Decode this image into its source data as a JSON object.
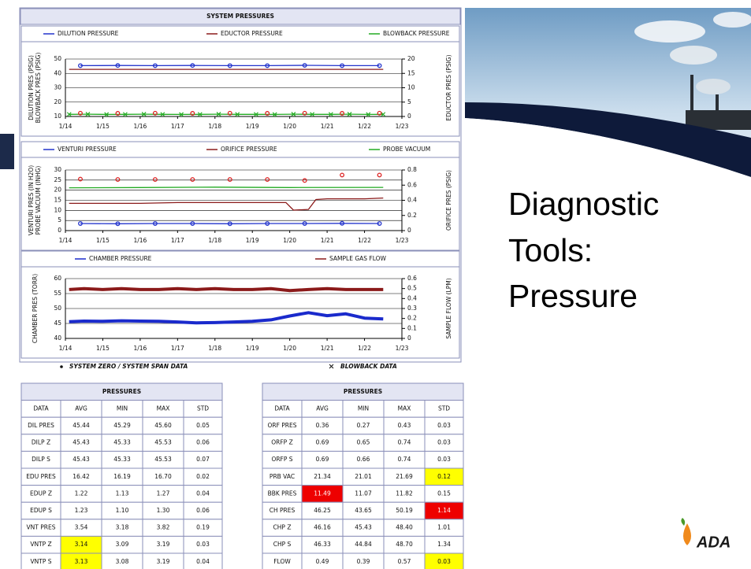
{
  "slide_title": [
    "Diagnostic",
    "Tools:",
    "Pressure"
  ],
  "panel_title": "SYSTEM PRESSURES",
  "chart_data": [
    {
      "type": "line",
      "ylabel": [
        "DILUTION PRES (PSIG)",
        "BLOWBACK PRES (PSIG)"
      ],
      "y2label": "EDUCTOR PRES (PSIG)",
      "xlim": [
        14,
        23
      ],
      "xticks": [
        {
          "value": 14,
          "label": "1/14"
        },
        {
          "value": 15,
          "label": "1/15"
        },
        {
          "value": 16,
          "label": "1/16"
        },
        {
          "value": 17,
          "label": "1/17"
        },
        {
          "value": 18,
          "label": "1/18"
        },
        {
          "value": 19,
          "label": "1/19"
        },
        {
          "value": 20,
          "label": "1/20"
        },
        {
          "value": 21,
          "label": "1/21"
        },
        {
          "value": 22,
          "label": "1/22"
        },
        {
          "value": 23,
          "label": "1/23"
        }
      ],
      "ylim": [
        10,
        50
      ],
      "yticks": [
        10,
        20,
        30,
        40,
        50
      ],
      "y2lim": [
        0,
        20
      ],
      "y2ticks": [
        0,
        5,
        10,
        15,
        20
      ],
      "grid": true,
      "series": [
        {
          "name": "DILUTION PRESSURE",
          "color": "#2233cc",
          "marker": "circle",
          "x": [
            14.4,
            15.4,
            16.4,
            17.4,
            18.4,
            19.4,
            20.4,
            21.4,
            22.4
          ],
          "values": [
            45.4,
            45.5,
            45.4,
            45.5,
            45.4,
            45.4,
            45.6,
            45.4,
            45.4
          ]
        },
        {
          "name": "EDUCTOR PRESSURE",
          "color": "#8b1a1a",
          "axis": "y2",
          "x": [
            14.1,
            16,
            18,
            20,
            22.5
          ],
          "values": [
            16.4,
            16.4,
            16.4,
            16.4,
            16.4
          ]
        },
        {
          "name": "BLOWBACK PRESSURE",
          "color": "#22aa22",
          "marker": "x",
          "x": [
            14.1,
            14.6,
            15.1,
            15.6,
            16.1,
            16.6,
            17.1,
            17.6,
            18.1,
            18.6,
            19.1,
            19.6,
            20.1,
            20.6,
            21.1,
            21.6,
            22.1,
            22.5
          ],
          "values": [
            11.5,
            11.6,
            11.4,
            11.5,
            11.6,
            11.5,
            11.4,
            11.5,
            11.6,
            11.5,
            11.5,
            11.4,
            11.6,
            11.5,
            11.5,
            11.6,
            11.4,
            11.5
          ]
        },
        {
          "color": "#dd2222",
          "marker": "circle",
          "line": false,
          "x": [
            14.4,
            15.4,
            16.4,
            17.4,
            18.4,
            19.4,
            20.4,
            21.4,
            22.4
          ],
          "values": [
            12.3,
            12.2,
            12.3,
            12.2,
            12.3,
            12.2,
            12.3,
            12.2,
            12.3
          ]
        }
      ]
    },
    {
      "type": "line",
      "ylabel": [
        "VENTURI PRES (IN H2O)",
        "PROBE VACUUM (INHG)"
      ],
      "y2label": "ORIFICE PRES (PSIG)",
      "xlim": [
        14,
        23
      ],
      "xticks": [
        {
          "value": 14,
          "label": "1/14"
        },
        {
          "value": 15,
          "label": "1/15"
        },
        {
          "value": 16,
          "label": "1/16"
        },
        {
          "value": 17,
          "label": "1/17"
        },
        {
          "value": 18,
          "label": "1/18"
        },
        {
          "value": 19,
          "label": "1/19"
        },
        {
          "value": 20,
          "label": "1/20"
        },
        {
          "value": 21,
          "label": "1/21"
        },
        {
          "value": 22,
          "label": "1/22"
        },
        {
          "value": 23,
          "label": "1/23"
        }
      ],
      "ylim": [
        0,
        30
      ],
      "yticks": [
        0,
        5,
        10,
        15,
        20,
        25,
        30
      ],
      "y2lim": [
        0,
        0.8
      ],
      "y2ticks": [
        0,
        0.2,
        0.4,
        0.6,
        0.8
      ],
      "grid": true,
      "series": [
        {
          "name": "VENTURI PRESSURE",
          "color": "#2233cc",
          "marker": "circle",
          "x": [
            14.4,
            15.4,
            16.4,
            17.4,
            18.4,
            19.4,
            20.4,
            21.4,
            22.4
          ],
          "values": [
            3.5,
            3.4,
            3.5,
            3.5,
            3.4,
            3.5,
            3.5,
            3.6,
            3.5
          ]
        },
        {
          "name": "ORIFICE PRESSURE",
          "color": "#8b1a1a",
          "axis": "y2",
          "x": [
            14.1,
            15,
            16,
            17,
            18,
            19,
            19.9,
            20.1,
            20.5,
            20.7,
            21,
            22,
            22.5
          ],
          "values": [
            0.36,
            0.36,
            0.36,
            0.37,
            0.37,
            0.37,
            0.37,
            0.27,
            0.28,
            0.41,
            0.42,
            0.42,
            0.43
          ]
        },
        {
          "name": "PROBE VACUUM",
          "color": "#22aa22",
          "x": [
            14.1,
            16,
            18,
            20,
            22.5
          ],
          "values": [
            21.2,
            21.3,
            21.5,
            21.3,
            21.4
          ]
        },
        {
          "color": "#dd2222",
          "marker": "circle",
          "line": false,
          "x": [
            14.4,
            15.4,
            16.4,
            17.4,
            18.4,
            19.4,
            20.4,
            21.4,
            22.4
          ],
          "values": [
            25.5,
            25.3,
            25.3,
            25.3,
            25.3,
            25.3,
            24.8,
            27.5,
            27.5
          ]
        }
      ]
    },
    {
      "type": "line",
      "ylabel": [
        "CHAMBER PRES (TORR)"
      ],
      "y2label": "SAMPLE FLOW (LPM)",
      "xlim": [
        14,
        23
      ],
      "xticks": [
        {
          "value": 14,
          "label": "1/14"
        },
        {
          "value": 15,
          "label": "1/15"
        },
        {
          "value": 16,
          "label": "1/16"
        },
        {
          "value": 17,
          "label": "1/17"
        },
        {
          "value": 18,
          "label": "1/18"
        },
        {
          "value": 19,
          "label": "1/19"
        },
        {
          "value": 20,
          "label": "1/20"
        },
        {
          "value": 21,
          "label": "1/21"
        },
        {
          "value": 22,
          "label": "1/22"
        },
        {
          "value": 23,
          "label": "1/23"
        }
      ],
      "ylim": [
        40,
        60
      ],
      "yticks": [
        40,
        45,
        50,
        55,
        60
      ],
      "y2lim": [
        0,
        0.6
      ],
      "y2ticks": [
        0,
        0.1,
        0.2,
        0.3,
        0.4,
        0.5,
        0.6
      ],
      "grid": true,
      "series": [
        {
          "name": "CHAMBER PRESSURE",
          "color": "#1a2acc",
          "x": [
            14.1,
            14.5,
            15,
            15.5,
            16,
            16.5,
            17,
            17.5,
            18,
            18.5,
            19,
            19.5,
            20,
            20.5,
            21,
            21.5,
            22,
            22.5
          ],
          "values": [
            45.6,
            45.8,
            45.7,
            45.9,
            45.8,
            45.7,
            45.5,
            45.2,
            45.3,
            45.5,
            45.7,
            46.2,
            47.5,
            48.6,
            47.6,
            48.2,
            46.8,
            46.5
          ]
        },
        {
          "name": "SAMPLE GAS FLOW",
          "color": "#8b1a1a",
          "axis": "y2",
          "x": [
            14.1,
            14.5,
            15,
            15.5,
            16,
            16.5,
            17,
            17.5,
            18,
            18.5,
            19,
            19.5,
            20,
            20.5,
            21,
            21.5,
            22,
            22.5
          ],
          "values": [
            0.49,
            0.5,
            0.49,
            0.5,
            0.49,
            0.49,
            0.5,
            0.49,
            0.5,
            0.49,
            0.49,
            0.5,
            0.48,
            0.49,
            0.5,
            0.49,
            0.49,
            0.49
          ]
        }
      ]
    }
  ],
  "footnotes": [
    "SYSTEM ZERO / SYSTEM SPAN DATA",
    "BLOWBACK DATA"
  ],
  "tables": [
    {
      "title": "PRESSURES",
      "columns": [
        "DATA",
        "AVG",
        "MIN",
        "MAX",
        "STD"
      ],
      "rows": [
        [
          "DIL PRES",
          "45.44",
          "45.29",
          "45.60",
          "0.05"
        ],
        [
          "DILP Z",
          "45.43",
          "45.33",
          "45.53",
          "0.06"
        ],
        [
          "DILP S",
          "45.43",
          "45.33",
          "45.53",
          "0.07"
        ],
        [
          "EDU PRES",
          "16.42",
          "16.19",
          "16.70",
          "0.02"
        ],
        [
          "EDUP Z",
          "1.22",
          "1.13",
          "1.27",
          "0.04"
        ],
        [
          "EDUP S",
          "1.23",
          "1.10",
          "1.30",
          "0.06"
        ],
        [
          "VNT PRES",
          "3.54",
          "3.18",
          "3.82",
          "0.19"
        ],
        [
          "VNTP Z",
          "3.14",
          "3.09",
          "3.19",
          "0.03"
        ],
        [
          "VNTP S",
          "3.13",
          "3.08",
          "3.19",
          "0.04"
        ]
      ],
      "cell_colors": [
        {
          "row": 7,
          "col": 1,
          "color": "#ffff00"
        },
        {
          "row": 8,
          "col": 1,
          "color": "#ffff00"
        }
      ]
    },
    {
      "title": "PRESSURES",
      "columns": [
        "DATA",
        "AVG",
        "MIN",
        "MAX",
        "STD"
      ],
      "rows": [
        [
          "ORF PRES",
          "0.36",
          "0.27",
          "0.43",
          "0.03"
        ],
        [
          "ORFP Z",
          "0.69",
          "0.65",
          "0.74",
          "0.03"
        ],
        [
          "ORFP S",
          "0.69",
          "0.66",
          "0.74",
          "0.03"
        ],
        [
          "PRB VAC",
          "21.34",
          "21.01",
          "21.69",
          "0.12"
        ],
        [
          "BBK PRES",
          "11.49",
          "11.07",
          "11.82",
          "0.15"
        ],
        [
          "CH PRES",
          "46.25",
          "43.65",
          "50.19",
          "1.14"
        ],
        [
          "CHP Z",
          "46.16",
          "45.43",
          "48.40",
          "1.01"
        ],
        [
          "CHP S",
          "46.33",
          "44.84",
          "48.70",
          "1.34"
        ],
        [
          "FLOW",
          "0.49",
          "0.39",
          "0.57",
          "0.03"
        ]
      ],
      "cell_colors": [
        {
          "row": 3,
          "col": 4,
          "color": "#ffff00"
        },
        {
          "row": 4,
          "col": 1,
          "color": "#ee0000",
          "text_color": "#ffffff"
        },
        {
          "row": 5,
          "col": 4,
          "color": "#ee0000",
          "text_color": "#ffffff"
        },
        {
          "row": 8,
          "col": 4,
          "color": "#ffff00"
        }
      ]
    }
  ],
  "logo": "ADA"
}
